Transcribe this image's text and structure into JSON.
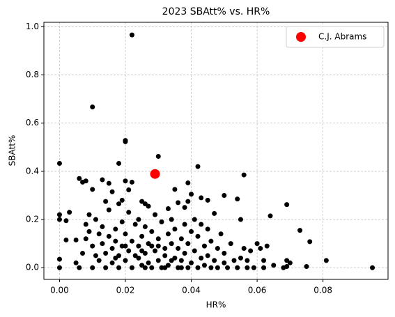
{
  "chart_data": {
    "type": "scatter",
    "title": "2023 SBAtt% vs. HR%",
    "x_label": "HR%",
    "y_label": "SBAtt%",
    "xlim": [
      -0.00475,
      0.09975
    ],
    "ylim": [
      -0.0485,
      1.0185
    ],
    "xticks": [
      {
        "value": 0,
        "label": "0.00"
      },
      {
        "value": 0.02,
        "label": "0.02"
      },
      {
        "value": 0.04,
        "label": "0.04"
      },
      {
        "value": 0.06,
        "label": "0.06"
      },
      {
        "value": 0.08,
        "label": "0.08"
      }
    ],
    "yticks": [
      {
        "value": 0,
        "label": "0.0"
      },
      {
        "value": 0.2,
        "label": "0.2"
      },
      {
        "value": 0.4,
        "label": "0.4"
      },
      {
        "value": 0.6,
        "label": "0.6"
      },
      {
        "value": 0.8,
        "label": "0.8"
      },
      {
        "value": 1,
        "label": "1.0"
      }
    ],
    "grid": true,
    "legend": "upper right",
    "series": [
      {
        "color": "#000000",
        "x": [
          0.022,
          0.01,
          0.02,
          0.02,
          0.03,
          0,
          0.018,
          0.042,
          0.056,
          0.006,
          0.008,
          0.007,
          0.013,
          0.015,
          0.02,
          0.021,
          0.022,
          0.016,
          0.01,
          0.035,
          0.039,
          0.04,
          0.043,
          0.045,
          0.05,
          0.054,
          0.069,
          0.014,
          0.019,
          0.018,
          0.025,
          0.026,
          0.027,
          0.033,
          0.036,
          0.039,
          0.038,
          0.047,
          0.055,
          0.064,
          0.073,
          0.076,
          0.081,
          0.095,
          0.075,
          0.07,
          0.069,
          0.068,
          0,
          0,
          0.002,
          0.003,
          0.002,
          0.005,
          0,
          0,
          0.005,
          0.006,
          0.007,
          0.008,
          0.009,
          0.008,
          0.009,
          0.01,
          0.01,
          0.011,
          0.011,
          0.012,
          0.012,
          0.013,
          0.013,
          0.014,
          0.014,
          0.015,
          0.015,
          0.016,
          0.016,
          0.017,
          0.017,
          0.018,
          0.018,
          0.019,
          0.019,
          0.02,
          0.02,
          0.021,
          0.021,
          0.022,
          0.022,
          0.023,
          0.023,
          0.024,
          0.024,
          0.025,
          0.025,
          0.026,
          0.026,
          0.027,
          0.027,
          0.028,
          0.028,
          0.029,
          0.029,
          0.03,
          0.03,
          0.031,
          0.031,
          0.032,
          0.032,
          0.033,
          0.033,
          0.034,
          0.034,
          0.035,
          0.035,
          0.036,
          0.036,
          0.037,
          0.037,
          0.038,
          0.038,
          0.039,
          0.039,
          0.04,
          0.04,
          0.041,
          0.041,
          0.042,
          0.042,
          0.043,
          0.043,
          0.044,
          0.044,
          0.045,
          0.045,
          0.046,
          0.046,
          0.047,
          0.048,
          0.048,
          0.049,
          0.05,
          0.05,
          0.051,
          0.052,
          0.053,
          0.054,
          0.055,
          0.056,
          0.057,
          0.057,
          0.058,
          0.059,
          0.06,
          0.061,
          0.062,
          0.062,
          0.063,
          0.065,
          0.069,
          0.037,
          0.026,
          0.024,
          0.028,
          0.032,
          0.034,
          0.03,
          0.025,
          0.02,
          0.017
        ],
        "values": [
          0.966,
          0.667,
          0.528,
          0.523,
          0.462,
          0.433,
          0.433,
          0.42,
          0.385,
          0.37,
          0.36,
          0.355,
          0.365,
          0.35,
          0.36,
          0.323,
          0.355,
          0.315,
          0.325,
          0.325,
          0.352,
          0.305,
          0.29,
          0.28,
          0.3,
          0.285,
          0.262,
          0.275,
          0.28,
          0.265,
          0.275,
          0.265,
          0.255,
          0.245,
          0.27,
          0.275,
          0.25,
          0.225,
          0.2,
          0.215,
          0.155,
          0.108,
          0.03,
          0,
          0.005,
          0.02,
          0.03,
          0,
          0.22,
          0.2,
          0.195,
          0.23,
          0.115,
          0.115,
          0.035,
          0,
          0.02,
          0,
          0.06,
          0.18,
          0.15,
          0.12,
          0.22,
          0.09,
          0,
          0.05,
          0.2,
          0.14,
          0.03,
          0.1,
          0.17,
          0,
          0.06,
          0.13,
          0.24,
          0.08,
          0.02,
          0.16,
          0.11,
          0,
          0.05,
          0.19,
          0.09,
          0.14,
          0.03,
          0.07,
          0.23,
          0,
          0.11,
          0.18,
          0.05,
          0.09,
          0.2,
          0.01,
          0.13,
          0.06,
          0.17,
          0.02,
          0.1,
          0,
          0.15,
          0.07,
          0.22,
          0.03,
          0.12,
          0,
          0.19,
          0.08,
          0.05,
          0.14,
          0.01,
          0.1,
          0.2,
          0.04,
          0.16,
          0,
          0.08,
          0.12,
          0.03,
          0.18,
          0.06,
          0,
          0.1,
          0.15,
          0.02,
          0.07,
          0.2,
          0,
          0.13,
          0.04,
          0.18,
          0.09,
          0.01,
          0.16,
          0.05,
          0,
          0.11,
          0.03,
          0.08,
          0,
          0.14,
          0.02,
          0.06,
          0,
          0.1,
          0.03,
          0,
          0.04,
          0.08,
          0,
          0.03,
          0.07,
          0,
          0.1,
          0.08,
          0.03,
          0,
          0.09,
          0.01,
          0.005,
          0,
          0,
          0.04,
          0.09,
          0,
          0.03,
          0.09,
          0.07,
          0.09,
          0.04
        ]
      },
      {
        "name": "C.J. Abrams",
        "color": "#ff0000",
        "x": [
          0.029
        ],
        "values": [
          0.389
        ]
      }
    ]
  }
}
